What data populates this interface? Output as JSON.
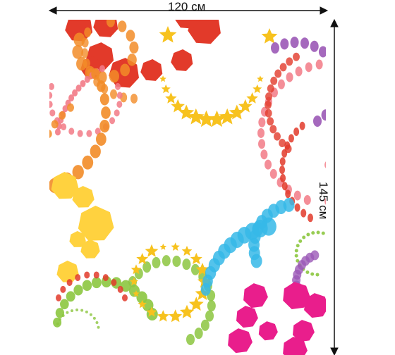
{
  "dimensions": {
    "width_label": "120 см",
    "height_label": "145 см"
  },
  "palette": {
    "red": "#e23a2a",
    "orange": "#f28c28",
    "yellow": "#ffd23f",
    "gold_star": "#f7c21e",
    "pink": "#f27a86",
    "magenta": "#e91e8c",
    "purple": "#9b59b6",
    "blue": "#36b9e8",
    "lime": "#8cc63f",
    "arrow": "#111111"
  }
}
